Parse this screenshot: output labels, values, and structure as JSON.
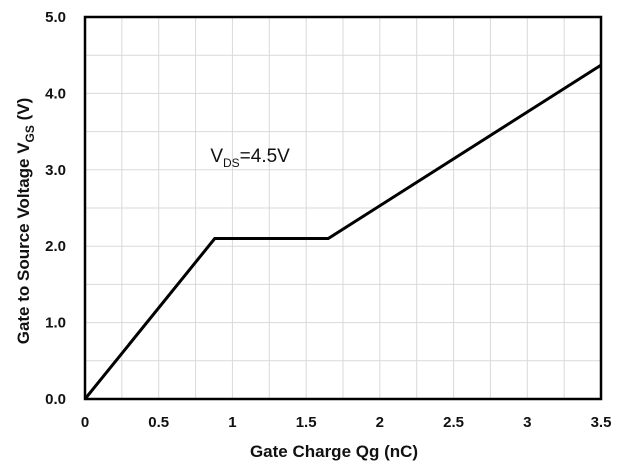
{
  "chart_data": {
    "type": "line",
    "title": "",
    "xlabel": "Gate Charge Qg (nC)",
    "ylabel": {
      "main": "Gate to Source  Voltage V",
      "sub": "GS",
      "unit": " (V)"
    },
    "xlim": [
      0,
      3.5
    ],
    "ylim": [
      0,
      5
    ],
    "xticks": [
      {
        "value": 0,
        "label": "0"
      },
      {
        "value": 0.5,
        "label": "0.5"
      },
      {
        "value": 1,
        "label": "1"
      },
      {
        "value": 1.5,
        "label": "1.5"
      },
      {
        "value": 2,
        "label": "2"
      },
      {
        "value": 2.5,
        "label": "2.5"
      },
      {
        "value": 3,
        "label": "3"
      },
      {
        "value": 3.5,
        "label": "3.5"
      }
    ],
    "yticks": [
      {
        "value": 0,
        "label": "0.0"
      },
      {
        "value": 1,
        "label": "1.0"
      },
      {
        "value": 2,
        "label": "2.0"
      },
      {
        "value": 3,
        "label": "3.0"
      },
      {
        "value": 4,
        "label": "4.0"
      },
      {
        "value": 5,
        "label": "5.0"
      }
    ],
    "grid": true,
    "series": [
      {
        "color": "#000000",
        "points": [
          {
            "x": 0,
            "y": 0
          },
          {
            "x": 0.88,
            "y": 2.1
          },
          {
            "x": 1.65,
            "y": 2.1
          },
          {
            "x": 3.5,
            "y": 4.37
          }
        ]
      }
    ],
    "annotations": [
      {
        "main": "V",
        "sub": "DS",
        "rest": "=4.5V",
        "x": 0.85,
        "y": 3.1
      }
    ]
  }
}
